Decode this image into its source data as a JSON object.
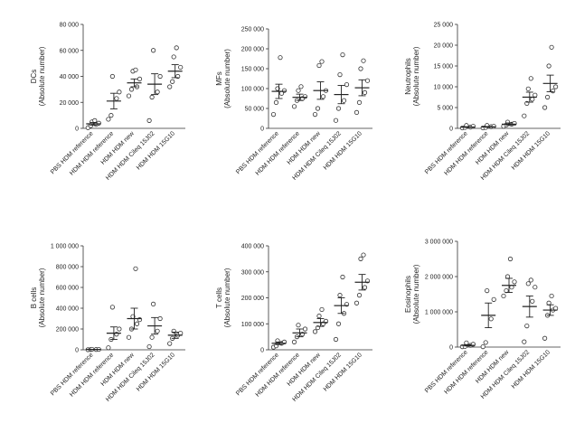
{
  "chart_data": [
    {
      "type": "scatter",
      "ylabel": "DCs",
      "ylabel_unit": "(Absolute number)",
      "ylim": [
        0,
        80000
      ],
      "yticks": [
        "0",
        "20 000",
        "40 000",
        "60 000",
        "80 000"
      ],
      "categories": [
        "PBS HDM reference",
        "HDM HDM reference",
        "HDM HDM new",
        "HDM HDM Cileq 15J02",
        "HDM HDM 15G10"
      ],
      "groups": [
        {
          "points": [
            500,
            2000,
            3000,
            4000,
            5000,
            6000
          ],
          "mean": 3500,
          "sem": 1000
        },
        {
          "points": [
            7000,
            10000,
            23000,
            28000,
            40000
          ],
          "mean": 21000,
          "sem": 6000
        },
        {
          "points": [
            25000,
            30000,
            32000,
            38000,
            44000,
            45000
          ],
          "mean": 35000,
          "sem": 3000
        },
        {
          "points": [
            6000,
            24000,
            28000,
            40000,
            60000
          ],
          "mean": 34000,
          "sem": 8000
        },
        {
          "points": [
            32000,
            36000,
            40000,
            47000,
            55000,
            62000
          ],
          "mean": 44000,
          "sem": 5000
        }
      ]
    },
    {
      "type": "scatter",
      "ylabel": "MFs",
      "ylabel_unit": "(Absolute number)",
      "ylim": [
        0,
        250000
      ],
      "yticks": [
        "0",
        "50 000",
        "100 000",
        "150 000",
        "200 000",
        "250 000"
      ],
      "categories": [
        "PBS HDM reference",
        "HDM HDM reference",
        "HDM HDM new",
        "HDM HDM Cileq 15J02",
        "HDM HDM 15G10"
      ],
      "groups": [
        {
          "points": [
            35000,
            65000,
            88000,
            95000,
            100000,
            178000
          ],
          "mean": 93000,
          "sem": 18000
        },
        {
          "points": [
            55000,
            70000,
            75000,
            80000,
            95000,
            105000
          ],
          "mean": 78000,
          "sem": 8000
        },
        {
          "points": [
            35000,
            50000,
            80000,
            95000,
            158000,
            168000
          ],
          "mean": 95000,
          "sem": 22000
        },
        {
          "points": [
            20000,
            50000,
            70000,
            110000,
            135000,
            185000
          ],
          "mean": 85000,
          "sem": 23000
        },
        {
          "points": [
            40000,
            65000,
            90000,
            120000,
            150000,
            170000
          ],
          "mean": 102000,
          "sem": 20000
        }
      ]
    },
    {
      "type": "scatter",
      "ylabel": "Neutrophils",
      "ylabel_unit": "(Absolute number)",
      "ylim": [
        0,
        25000
      ],
      "yticks": [
        "0",
        "5 000",
        "10 000",
        "15 000",
        "20 000",
        "25 000"
      ],
      "categories": [
        "PBS HDM reference",
        "HDM HDM reference",
        "HDM HDM new",
        "HDM HDM Cileq 15J02",
        "HDM HDM 15G10"
      ],
      "groups": [
        {
          "points": [
            100,
            200,
            300,
            500,
            700
          ],
          "mean": 300,
          "sem": 100
        },
        {
          "points": [
            100,
            200,
            400,
            500,
            700
          ],
          "mean": 350,
          "sem": 100
        },
        {
          "points": [
            500,
            800,
            1000,
            1200,
            1500
          ],
          "mean": 1000,
          "sem": 300
        },
        {
          "points": [
            3000,
            6000,
            7000,
            8000,
            9500,
            12000
          ],
          "mean": 7500,
          "sem": 1200
        },
        {
          "points": [
            5000,
            7500,
            9000,
            10000,
            15000,
            19500
          ],
          "mean": 10800,
          "sem": 2000
        }
      ]
    },
    {
      "type": "scatter",
      "ylabel": "B cells",
      "ylabel_unit": "(Absolute number)",
      "ylim": [
        0,
        1000000
      ],
      "yticks": [
        "0",
        "200 000",
        "400 000",
        "600 000",
        "800 000",
        "1 000 000"
      ],
      "categories": [
        "PBS HDM reference",
        "HDM HDM reference",
        "HDM HDM new",
        "HDM HDM Cileq 15J02",
        "HDM HDM 15G10"
      ],
      "groups": [
        {
          "points": [
            1000,
            2000,
            3000,
            4000,
            5000
          ],
          "mean": 3000,
          "sem": 1000
        },
        {
          "points": [
            20000,
            100000,
            150000,
            200000,
            410000
          ],
          "mean": 160000,
          "sem": 60000
        },
        {
          "points": [
            120000,
            200000,
            250000,
            290000,
            320000,
            780000
          ],
          "mean": 300000,
          "sem": 100000
        },
        {
          "points": [
            30000,
            120000,
            180000,
            300000,
            440000
          ],
          "mean": 230000,
          "sem": 80000
        },
        {
          "points": [
            60000,
            110000,
            140000,
            160000,
            180000
          ],
          "mean": 140000,
          "sem": 30000
        }
      ]
    },
    {
      "type": "scatter",
      "ylabel": "T cells",
      "ylabel_unit": "(Absolute number)",
      "ylim": [
        0,
        400000
      ],
      "yticks": [
        "0",
        "100 000",
        "200 000",
        "300 000",
        "400 000"
      ],
      "categories": [
        "PBS HDM reference",
        "HDM HDM reference",
        "HDM HDM new",
        "HDM HDM Cileq 15J02",
        "HDM HDM 15G10"
      ],
      "groups": [
        {
          "points": [
            10000,
            15000,
            25000,
            30000,
            35000
          ],
          "mean": 25000,
          "sem": 5000
        },
        {
          "points": [
            30000,
            50000,
            60000,
            80000,
            95000
          ],
          "mean": 65000,
          "sem": 15000
        },
        {
          "points": [
            70000,
            85000,
            100000,
            110000,
            130000,
            155000
          ],
          "mean": 105000,
          "sem": 15000
        },
        {
          "points": [
            40000,
            100000,
            140000,
            175000,
            210000,
            280000
          ],
          "mean": 170000,
          "sem": 30000
        },
        {
          "points": [
            180000,
            210000,
            240000,
            265000,
            350000,
            365000
          ],
          "mean": 260000,
          "sem": 30000
        }
      ]
    },
    {
      "type": "scatter",
      "ylabel": "Eosinophils",
      "ylabel_unit": "(Absolute number)",
      "ylim": [
        0,
        3000000
      ],
      "yticks": [
        "0",
        "1 000 000",
        "2 000 000",
        "3 000 000"
      ],
      "categories": [
        "PBS HDM reference",
        "HDM HDM reference",
        "HDM HDM new",
        "HDM HDM Cileq 15J02",
        "HDM HDM 15G10"
      ],
      "groups": [
        {
          "points": [
            10000,
            20000,
            50000,
            80000,
            120000
          ],
          "mean": 50000,
          "sem": 20000
        },
        {
          "points": [
            10000,
            130000,
            800000,
            1350000,
            1600000
          ],
          "mean": 900000,
          "sem": 350000
        },
        {
          "points": [
            1450000,
            1600000,
            1700000,
            1850000,
            2000000,
            2500000
          ],
          "mean": 1750000,
          "sem": 200000
        },
        {
          "points": [
            150000,
            600000,
            1300000,
            1700000,
            1800000,
            1900000
          ],
          "mean": 1150000,
          "sem": 300000
        },
        {
          "points": [
            250000,
            900000,
            1050000,
            1100000,
            1250000,
            1450000
          ],
          "mean": 1050000,
          "sem": 150000
        }
      ]
    }
  ]
}
